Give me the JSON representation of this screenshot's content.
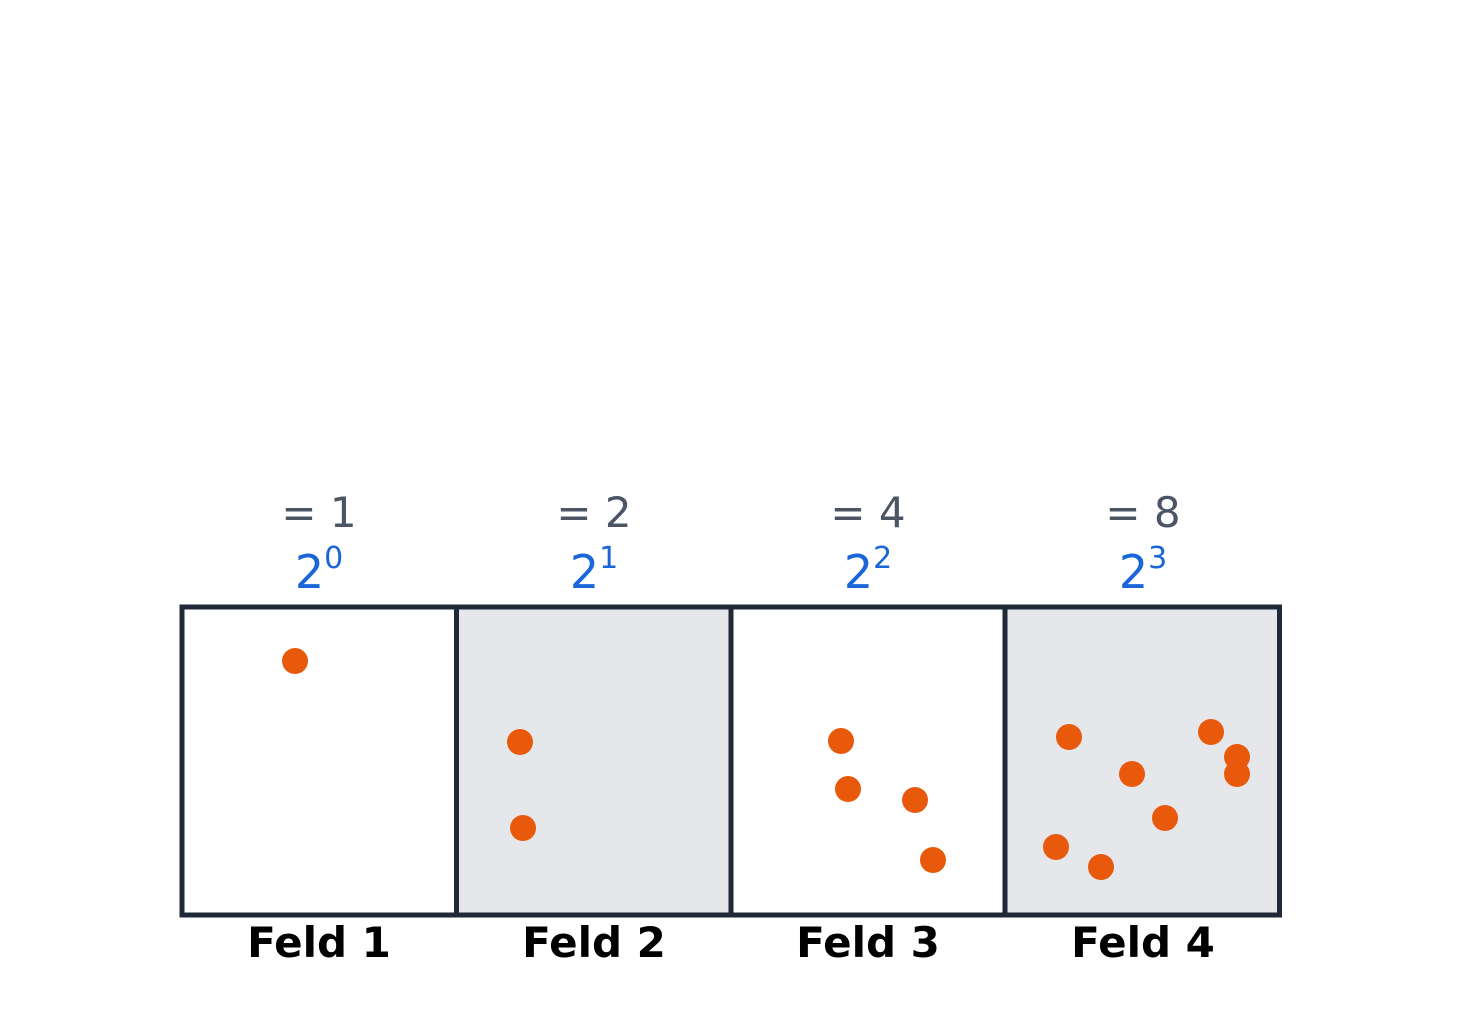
{
  "colors": {
    "border": "#1f2937",
    "shaded_fill": "#e5e7eb",
    "plain_fill": "#ffffff",
    "dot": "#e8590c",
    "equation_text": "#4b5563",
    "power_text": "#1a66d9",
    "label_text": "#000000"
  },
  "fields": [
    {
      "label": "Feld 1",
      "equation": "= 1",
      "base": "2",
      "exponent": "0",
      "shaded": false,
      "dot_count": 1
    },
    {
      "label": "Feld 2",
      "equation": "= 2",
      "base": "2",
      "exponent": "1",
      "shaded": true,
      "dot_count": 2
    },
    {
      "label": "Feld 3",
      "equation": "= 4",
      "base": "2",
      "exponent": "2",
      "shaded": false,
      "dot_count": 4
    },
    {
      "label": "Feld 4",
      "equation": "= 8",
      "base": "2",
      "exponent": "3",
      "shaded": true,
      "dot_count": 8
    }
  ]
}
